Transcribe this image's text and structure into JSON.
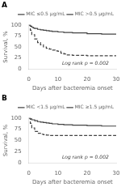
{
  "chart_data": [
    {
      "type": "step",
      "title": "A",
      "annotation": "Log rank p = 0.002",
      "x_label": "Days after bacteremia onset",
      "y_label": "Survival, %",
      "series": [
        {
          "name": "MIC ≤0.5 μg/mL",
          "color": "#444444",
          "line_style": "solid",
          "x": [
            0,
            0.5,
            1,
            1.5,
            2,
            3,
            4,
            5,
            6,
            7,
            8,
            10,
            12,
            15,
            20,
            25,
            30
          ],
          "values": [
            100,
            97,
            95,
            93,
            92,
            90,
            89,
            88,
            87,
            86,
            85,
            84,
            83,
            82,
            80,
            79,
            78
          ]
        },
        {
          "name": "MIC >0.5 μg/mL",
          "color": "#444444",
          "line_style": "dashed",
          "x": [
            0,
            0.5,
            1,
            2,
            3,
            4,
            5,
            6,
            7,
            8,
            9,
            10,
            11,
            12,
            13,
            15,
            20,
            25,
            30
          ],
          "values": [
            100,
            88,
            78,
            68,
            60,
            55,
            50,
            47,
            45,
            43,
            41,
            40,
            36,
            34,
            32,
            31,
            30,
            30,
            30
          ]
        }
      ],
      "xlim": [
        0,
        30
      ],
      "ylim": [
        0,
        100
      ],
      "xticks": [
        0,
        10,
        20,
        30
      ],
      "yticks": [
        0,
        25,
        50,
        75,
        100
      ],
      "grid": false,
      "legend": "upper right"
    },
    {
      "type": "step",
      "title": "B",
      "annotation": "Log rank p = 0.002",
      "x_label": "Days after bacteremia onset",
      "y_label": "Survival, %",
      "series": [
        {
          "name": "MIC <1.5 μg/mL",
          "color": "#444444",
          "line_style": "solid",
          "x": [
            0,
            0.5,
            1,
            2,
            3,
            4,
            5,
            6,
            7,
            8,
            10,
            12,
            15,
            20,
            25,
            30
          ],
          "values": [
            100,
            98,
            96,
            94,
            92,
            91,
            90,
            89,
            88,
            87,
            86,
            85,
            84,
            83,
            82,
            81
          ]
        },
        {
          "name": "MIC ≥1.5 μg/mL",
          "color": "#444444",
          "line_style": "dashed",
          "x": [
            0,
            0.5,
            1,
            2,
            3,
            4,
            5,
            6,
            7,
            8,
            9,
            10,
            12,
            15,
            20,
            25,
            30
          ],
          "values": [
            100,
            88,
            78,
            70,
            66,
            64,
            63,
            62,
            61,
            61,
            61,
            61,
            61,
            61,
            61,
            61,
            61
          ]
        }
      ],
      "xlim": [
        0,
        30
      ],
      "ylim": [
        0,
        100
      ],
      "xticks": [
        0,
        10,
        20,
        30
      ],
      "yticks": [
        0,
        25,
        50,
        75,
        100
      ],
      "grid": false,
      "legend": "upper right"
    }
  ]
}
